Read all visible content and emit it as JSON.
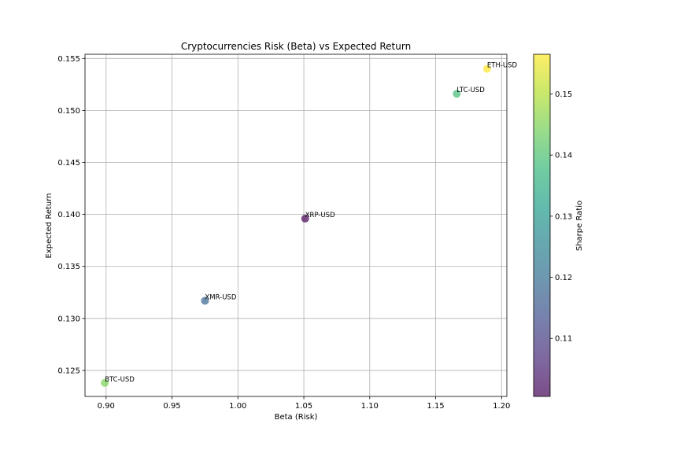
{
  "chart_data": {
    "type": "scatter",
    "title": "Cryptocurrencies Risk (Beta) vs Expected Return",
    "xlabel": "Beta (Risk)",
    "ylabel": "Expected Return",
    "xlim": [
      0.884,
      1.204
    ],
    "ylim": [
      0.1225,
      0.1554
    ],
    "xticks": [
      0.9,
      0.95,
      1.0,
      1.05,
      1.1,
      1.15,
      1.2
    ],
    "xtick_labels": [
      "0.90",
      "0.95",
      "1.00",
      "1.05",
      "1.10",
      "1.15",
      "1.20"
    ],
    "yticks": [
      0.125,
      0.13,
      0.135,
      0.14,
      0.145,
      0.15,
      0.155
    ],
    "ytick_labels": [
      "0.125",
      "0.130",
      "0.135",
      "0.140",
      "0.145",
      "0.150",
      "0.155"
    ],
    "grid": true,
    "points": [
      {
        "label": "BTC-USD",
        "x": 0.899,
        "y": 0.1238,
        "sharpe": 0.145
      },
      {
        "label": "XMR-USD",
        "x": 0.975,
        "y": 0.1317,
        "sharpe": 0.118
      },
      {
        "label": "XRP-USD",
        "x": 1.051,
        "y": 0.1396,
        "sharpe": 0.1005
      },
      {
        "label": "LTC-USD",
        "x": 1.166,
        "y": 0.1516,
        "sharpe": 0.139
      },
      {
        "label": "ETH-USD",
        "x": 1.189,
        "y": 0.154,
        "sharpe": 0.1565
      }
    ],
    "colorbar": {
      "label": "Sharpe Ratio",
      "range": [
        0.1005,
        0.1565
      ],
      "ticks": [
        0.11,
        0.12,
        0.13,
        0.14,
        0.15
      ],
      "tick_labels": [
        "0.11",
        "0.12",
        "0.13",
        "0.14",
        "0.15"
      ],
      "colormap": "viridis",
      "colormap_stops": [
        "#440154",
        "#482878",
        "#3e4989",
        "#31688e",
        "#26828e",
        "#1f9e89",
        "#35b779",
        "#6ece58",
        "#b5de2b",
        "#fde725"
      ]
    },
    "marker_alpha": 0.7
  }
}
